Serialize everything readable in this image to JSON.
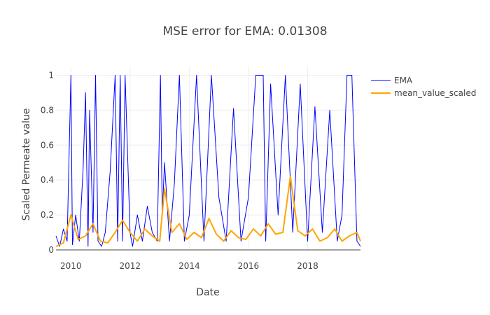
{
  "chart_data": {
    "type": "line",
    "title": "MSE error for EMA: 0.01308",
    "xlabel": "Date",
    "ylabel": "Scaled Permeate value",
    "x_range": [
      "2009-07-01",
      "2019-10-15"
    ],
    "ylim": [
      0,
      1.05
    ],
    "x_ticks": [
      "2010",
      "2012",
      "2014",
      "2016",
      "2018"
    ],
    "y_ticks": [
      "0",
      "0.2",
      "0.4",
      "0.6",
      "0.8",
      "1"
    ],
    "grid": true,
    "legend_position": "right",
    "colors": {
      "EMA": "#0000ff",
      "mean_value_scaled": "#ffa500"
    },
    "series": [
      {
        "name": "EMA",
        "x": [
          "2009-07-01",
          "2009-08-15",
          "2009-10-01",
          "2009-11-15",
          "2010-01-01",
          "2010-01-20",
          "2010-03-01",
          "2010-04-15",
          "2010-06-01",
          "2010-07-01",
          "2010-08-01",
          "2010-08-20",
          "2010-10-01",
          "2010-11-01",
          "2010-12-01",
          "2011-01-15",
          "2011-03-01",
          "2011-05-01",
          "2011-07-01",
          "2011-08-01",
          "2011-09-01",
          "2011-10-01",
          "2011-11-01",
          "2012-01-01",
          "2012-02-01",
          "2012-04-01",
          "2012-06-01",
          "2012-08-01",
          "2012-10-01",
          "2012-12-01",
          "2013-01-10",
          "2013-02-01",
          "2013-03-01",
          "2013-05-01",
          "2013-07-01",
          "2013-09-01",
          "2013-11-01",
          "2014-01-01",
          "2014-04-01",
          "2014-07-01",
          "2014-10-01",
          "2015-01-01",
          "2015-04-01",
          "2015-07-01",
          "2015-10-01",
          "2016-01-01",
          "2016-04-01",
          "2016-07-01",
          "2016-08-01",
          "2016-10-01",
          "2017-01-01",
          "2017-04-01",
          "2017-07-01",
          "2017-10-01",
          "2018-01-01",
          "2018-04-01",
          "2018-07-01",
          "2018-10-01",
          "2019-01-01",
          "2019-03-01",
          "2019-05-01",
          "2019-07-01",
          "2019-09-01",
          "2019-10-15"
        ],
        "y": [
          0.08,
          0.02,
          0.12,
          0.05,
          1.0,
          0.03,
          0.2,
          0.05,
          0.47,
          0.9,
          0.02,
          0.8,
          0.1,
          1.0,
          0.05,
          0.02,
          0.1,
          0.45,
          1.0,
          0.05,
          1.0,
          0.05,
          1.0,
          0.1,
          0.02,
          0.2,
          0.05,
          0.25,
          0.1,
          0.05,
          1.0,
          0.2,
          0.5,
          0.05,
          0.38,
          1.0,
          0.05,
          0.2,
          1.0,
          0.05,
          1.0,
          0.3,
          0.05,
          0.81,
          0.05,
          0.3,
          1.0,
          1.0,
          0.05,
          0.95,
          0.2,
          1.0,
          0.1,
          0.95,
          0.05,
          0.82,
          0.1,
          0.8,
          0.05,
          0.2,
          1.0,
          1.0,
          0.05,
          0.02
        ]
      },
      {
        "name": "mean_value_scaled",
        "x": [
          "2009-07-01",
          "2009-10-01",
          "2010-01-01",
          "2010-04-01",
          "2010-07-01",
          "2010-10-01",
          "2011-01-01",
          "2011-04-01",
          "2011-07-01",
          "2011-10-01",
          "2012-01-01",
          "2012-04-01",
          "2012-07-01",
          "2012-10-01",
          "2013-01-01",
          "2013-03-01",
          "2013-06-01",
          "2013-09-01",
          "2013-12-01",
          "2014-03-01",
          "2014-06-01",
          "2014-09-01",
          "2014-12-01",
          "2015-03-01",
          "2015-06-01",
          "2015-09-01",
          "2015-12-01",
          "2016-03-01",
          "2016-06-01",
          "2016-09-01",
          "2016-12-01",
          "2017-03-01",
          "2017-06-01",
          "2017-09-01",
          "2017-12-01",
          "2018-03-01",
          "2018-06-01",
          "2018-09-01",
          "2018-12-01",
          "2019-03-01",
          "2019-06-01",
          "2019-09-01",
          "2019-10-15"
        ],
        "y": [
          0.02,
          0.04,
          0.2,
          0.06,
          0.08,
          0.15,
          0.05,
          0.04,
          0.1,
          0.17,
          0.1,
          0.05,
          0.12,
          0.08,
          0.05,
          0.35,
          0.1,
          0.15,
          0.06,
          0.1,
          0.07,
          0.18,
          0.09,
          0.05,
          0.11,
          0.07,
          0.06,
          0.12,
          0.08,
          0.15,
          0.09,
          0.1,
          0.42,
          0.11,
          0.08,
          0.12,
          0.05,
          0.07,
          0.12,
          0.05,
          0.08,
          0.1,
          0.05
        ]
      }
    ]
  }
}
